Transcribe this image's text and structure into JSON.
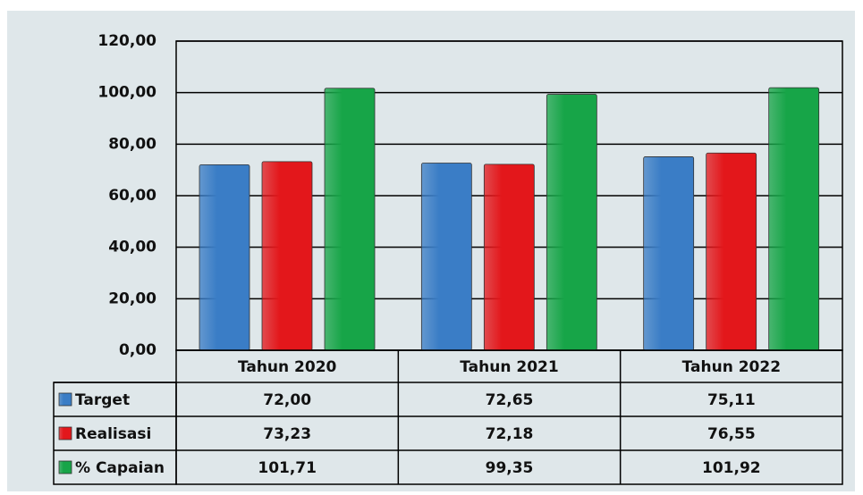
{
  "chart_data": {
    "type": "bar",
    "categories": [
      "Tahun 2020",
      "Tahun 2021",
      "Tahun 2022"
    ],
    "series": [
      {
        "name": "Target",
        "color": "#3a7dc6",
        "values": [
          72.0,
          72.65,
          75.11
        ],
        "value_labels": [
          "72,00",
          "72,65",
          "75,11"
        ]
      },
      {
        "name": "Realisasi",
        "color": "#e3171b",
        "values": [
          73.23,
          72.18,
          76.55
        ],
        "value_labels": [
          "73,23",
          "72,18",
          "76,55"
        ]
      },
      {
        "name": "% Capaian",
        "color": "#17a548",
        "values": [
          101.71,
          99.35,
          101.92
        ],
        "value_labels": [
          "101,71",
          "99,35",
          "101,92"
        ]
      }
    ],
    "ylim": [
      0,
      120
    ],
    "yticks": [
      {
        "value": 0,
        "label": "0,00"
      },
      {
        "value": 20,
        "label": "20,00"
      },
      {
        "value": 40,
        "label": "40,00"
      },
      {
        "value": 60,
        "label": "60,00"
      },
      {
        "value": 80,
        "label": "80,00"
      },
      {
        "value": 100,
        "label": "100,00"
      },
      {
        "value": 120,
        "label": "120,00"
      }
    ],
    "grid": true
  }
}
